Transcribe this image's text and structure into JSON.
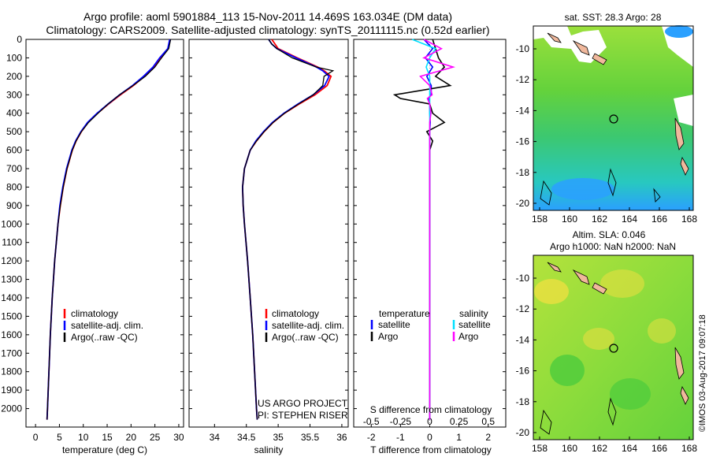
{
  "title": {
    "line1": "Argo profile: aoml 5901884_113 15-Nov-2011 14.469S 163.034E (DM data)",
    "line2": "Climatology: CARS2009. Satellite-adjusted climatology: synTS_20111115.nc (0.52d earlier)"
  },
  "colors": {
    "climatology": "#ff0000",
    "satellite": "#0000ff",
    "argo": "#000000",
    "argo_s": "#ff00ff",
    "satellite_s": "#00e0ff",
    "map_green": "#64d23c",
    "map_land": "#f0b89c"
  },
  "chart_data": [
    {
      "type": "line",
      "id": "temperature",
      "xlabel": "temperature (deg C)",
      "ylabel": "",
      "xlim": [
        -2,
        31
      ],
      "ylim": [
        2100,
        0
      ],
      "xticks": [
        0,
        5,
        10,
        15,
        20,
        25,
        30
      ],
      "yticks": [
        0,
        100,
        200,
        300,
        400,
        500,
        600,
        700,
        800,
        900,
        1000,
        1100,
        1200,
        1300,
        1400,
        1500,
        1600,
        1700,
        1800,
        1900,
        2000
      ],
      "depth": [
        0,
        50,
        100,
        150,
        200,
        250,
        300,
        350,
        400,
        450,
        500,
        550,
        600,
        700,
        800,
        900,
        1000,
        1200,
        1400,
        1600,
        1800,
        2000,
        2060
      ],
      "series": [
        {
          "name": "climatology",
          "values": [
            28.2,
            27.8,
            26.2,
            24.8,
            22.8,
            20.5,
            17.8,
            15.3,
            13.0,
            11.0,
            9.6,
            8.5,
            7.7,
            6.6,
            5.8,
            5.2,
            4.7,
            4.0,
            3.5,
            3.1,
            2.8,
            2.5,
            2.4
          ]
        },
        {
          "name": "satellite-adj. clim.",
          "values": [
            28.1,
            27.7,
            26.0,
            24.6,
            22.6,
            20.3,
            17.6,
            15.2,
            12.9,
            10.9,
            9.5,
            8.4,
            7.6,
            6.5,
            5.7,
            5.1,
            4.7,
            4.0,
            3.5,
            3.1,
            2.8,
            2.5,
            2.4
          ]
        },
        {
          "name": "Argo(..raw -QC)",
          "values": [
            28.3,
            27.9,
            26.4,
            25.0,
            23.0,
            20.4,
            17.6,
            15.2,
            13.1,
            11.1,
            9.6,
            8.5,
            7.7,
            6.6,
            5.8,
            5.2,
            4.7,
            4.0,
            3.5,
            3.1,
            2.8,
            2.5,
            2.4
          ]
        }
      ],
      "legend": [
        "climatology",
        "satellite-adj. clim.",
        "Argo(..raw -QC)"
      ]
    },
    {
      "type": "line",
      "id": "salinity",
      "xlabel": "salinity",
      "xlim": [
        33.6,
        36.1
      ],
      "ylim": [
        2100,
        0
      ],
      "xticks": [
        34,
        34.5,
        35,
        35.5,
        36
      ],
      "depth": [
        0,
        25,
        50,
        100,
        150,
        170,
        200,
        250,
        300,
        350,
        400,
        450,
        500,
        550,
        600,
        700,
        800,
        900,
        1000,
        1200,
        1400,
        1600,
        1800,
        2000,
        2060
      ],
      "series": [
        {
          "name": "climatology",
          "values": [
            34.9,
            34.95,
            35.0,
            35.3,
            35.62,
            35.72,
            35.83,
            35.77,
            35.58,
            35.33,
            35.1,
            34.92,
            34.78,
            34.66,
            34.56,
            34.47,
            34.44,
            34.45,
            34.47,
            34.52,
            34.56,
            34.6,
            34.63,
            34.66,
            34.67
          ]
        },
        {
          "name": "satellite-adj. clim.",
          "values": [
            34.85,
            34.9,
            34.98,
            35.28,
            35.6,
            35.7,
            35.8,
            35.73,
            35.55,
            35.31,
            35.09,
            34.91,
            34.77,
            34.65,
            34.56,
            34.47,
            34.44,
            34.45,
            34.47,
            34.52,
            34.56,
            34.6,
            34.63,
            34.66,
            34.67
          ]
        },
        {
          "name": "Argo(..raw -QC)",
          "values": [
            34.85,
            34.9,
            34.98,
            35.22,
            35.6,
            35.86,
            35.72,
            35.7,
            35.55,
            35.32,
            35.1,
            34.92,
            34.78,
            34.66,
            34.56,
            34.47,
            34.44,
            34.45,
            34.47,
            34.52,
            34.56,
            34.6,
            34.63,
            34.66,
            34.67
          ]
        }
      ],
      "legend": [
        "climatology",
        "satellite-adj. clim.",
        "Argo(..raw -QC)"
      ],
      "credit": [
        "US ARGO PROJECT",
        "PI: STEPHEN RISER"
      ]
    },
    {
      "type": "line",
      "id": "difference",
      "xlabel": "T difference from climatology",
      "xlabel_top": "S difference from climatology",
      "xlim": [
        -2.6,
        2.6
      ],
      "ylim": [
        2100,
        0
      ],
      "xticks": [
        -2,
        -1,
        0,
        1,
        2
      ],
      "xtick_labels": [
        "-2",
        "-1",
        "0",
        "1",
        "2"
      ],
      "sticks": [
        -0.5,
        -0.25,
        0,
        0.25,
        0.5
      ],
      "stick_labels": [
        "-0.5",
        "-0.25",
        "0",
        "0.25",
        "0.5"
      ],
      "legend_t": [
        "temperature",
        "satellite",
        "Argo"
      ],
      "legend_s": [
        "salinity",
        "satellite",
        "Argo"
      ],
      "depth_t": [
        0,
        50,
        100,
        150,
        200,
        250,
        300,
        320,
        350,
        400,
        450,
        500,
        550,
        600,
        700,
        900,
        1200,
        1600,
        2000,
        2060
      ],
      "series": [
        {
          "name": "temperature satellite",
          "values": [
            -0.2,
            0.1,
            -0.15,
            0.1,
            -0.1,
            0.05,
            0.05,
            -0.05,
            0.0,
            0.0,
            0.02,
            0.0,
            0.0,
            0.0,
            0.0,
            0.0,
            0.0,
            0.0,
            0.0,
            0.0
          ]
        },
        {
          "name": "temperature Argo",
          "values": [
            0.1,
            0.2,
            0.3,
            0.5,
            0.2,
            0.7,
            -1.2,
            -1.0,
            0.0,
            0.1,
            0.5,
            -0.1,
            0.1,
            0.0,
            0.0,
            0.0,
            0.0,
            0.0,
            0.0,
            0.0
          ]
        },
        {
          "name": "salinity satellite",
          "values": [
            -0.15,
            0.05,
            0.0,
            -0.03,
            0.0,
            0.0,
            0.0,
            0.0,
            0.0,
            0.0,
            0.0,
            0.0,
            0.0,
            0.0,
            0.0,
            0.0,
            0.0,
            0.0,
            0.0,
            0.0
          ]
        },
        {
          "name": "salinity Argo",
          "values": [
            -0.05,
            0.1,
            -0.05,
            0.2,
            -0.08,
            0.0,
            0.02,
            -0.02,
            0.0,
            0.01,
            0.0,
            0.0,
            0.0,
            0.0,
            0.0,
            0.0,
            0.0,
            0.0,
            0.0,
            0.0
          ]
        }
      ]
    }
  ],
  "maps": {
    "sst": {
      "title": "sat. SST: 28.3 Argo: 28",
      "xticks": [
        "158",
        "160",
        "162",
        "164",
        "166",
        "168"
      ],
      "yticks": [
        "-10",
        "-12",
        "-14",
        "-16",
        "-18",
        "-20"
      ]
    },
    "sla": {
      "title1": "Altim. SLA: 0.046",
      "title2": "Argo h1000: NaN h2000: NaN",
      "xticks": [
        "158",
        "160",
        "162",
        "164",
        "166",
        "168"
      ],
      "yticks": [
        "-10",
        "-12",
        "-14",
        "-16",
        "-18",
        "-20"
      ]
    },
    "float_position": {
      "lon": 163.034,
      "lat": -14.469
    }
  },
  "footer": "©IMOS 03-Aug-2017 09:07:18"
}
